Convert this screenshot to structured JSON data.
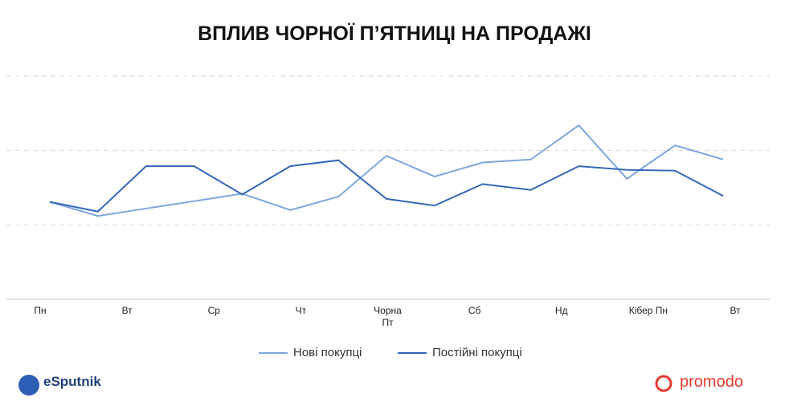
{
  "chart_data": {
    "type": "line",
    "title": "ВПЛИВ ЧОРНОЇ П’ЯТНИЦІ НА ПРОДАЖІ",
    "x_tick_labels": [
      "Пн",
      "Вт",
      "Ср",
      "Чт",
      "Чорна Пт",
      "Сб",
      "Нд",
      "Кібер Пн",
      "Вт"
    ],
    "series": [
      {
        "name": "Нові покупці",
        "color": "#7ea6dc",
        "values": [
          1.31,
          1.12,
          1.22,
          1.32,
          1.42,
          1.2,
          1.38,
          1.93,
          1.65,
          1.84,
          1.88,
          2.34,
          1.62,
          2.07,
          1.88
        ]
      },
      {
        "name": "Постійні покупці",
        "color": "#3567b7",
        "values": [
          1.31,
          1.18,
          1.79,
          1.79,
          1.41,
          1.79,
          1.87,
          1.35,
          1.26,
          1.55,
          1.47,
          1.79,
          1.74,
          1.73,
          1.39
        ]
      }
    ],
    "ylim": [
      0,
      3
    ],
    "yticks": [
      1,
      2,
      3
    ],
    "grid": true,
    "logos": {
      "left": "eSputnik",
      "right": "promodo"
    }
  }
}
